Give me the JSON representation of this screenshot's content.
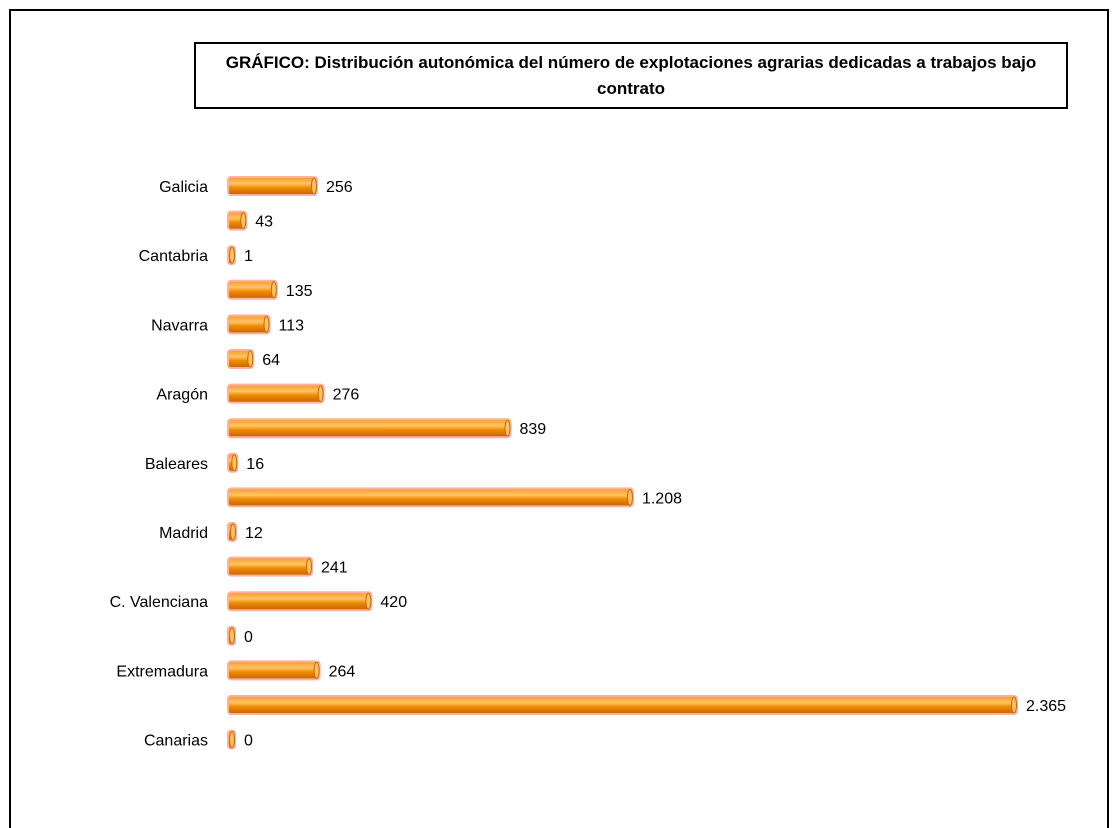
{
  "chart_data": {
    "type": "bar",
    "orientation": "horizontal",
    "title": "GRÁFICO: Distribución autonómica del número de explotaciones agrarias dedicadas a trabajos bajo contrato",
    "categories": [
      "Galicia",
      "",
      "Cantabria",
      "",
      "Navarra",
      "",
      "Aragón",
      "",
      "Baleares",
      "",
      "Madrid",
      "",
      "C. Valenciana",
      "",
      "Extremadura",
      "",
      "Canarias"
    ],
    "values": [
      256,
      43,
      1,
      135,
      113,
      64,
      276,
      839,
      16,
      1208,
      12,
      241,
      420,
      0,
      264,
      2365,
      0
    ],
    "value_labels": [
      "256",
      "43",
      "1",
      "135",
      "113",
      "64",
      "276",
      "839",
      "16",
      "1.208",
      "12",
      "241",
      "420",
      "0",
      "264",
      "2.365",
      "0"
    ],
    "xlim": [
      0,
      2365
    ],
    "grid": false,
    "legend": false,
    "bar_color": "#f08c00",
    "bar_highlight": "#ffc060",
    "bar_edge": "#ffb0a0"
  }
}
